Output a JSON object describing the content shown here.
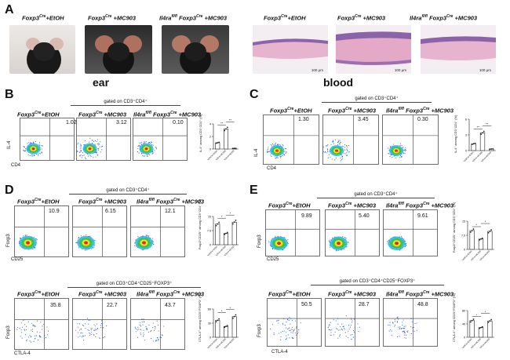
{
  "colors": {
    "flow_core_red": "#e8261e",
    "flow_yellow": "#f2e21c",
    "flow_green": "#3ec24a",
    "flow_cyan": "#24b8e4",
    "flow_blue": "#2450d8",
    "histo_pink": "#e7b4cf",
    "histo_purple": "#8b63a8"
  },
  "panel_a": {
    "letter": "A",
    "groups": [
      {
        "prefix": "Foxp3",
        "sup": "Cre",
        "suffix": "+EtOH"
      },
      {
        "prefix": "Foxp3",
        "sup": "Cre",
        "suffix": " +MC903"
      },
      {
        "prefix": "Il4ra",
        "sup": "fl/fl",
        "mid": " Foxp3",
        "sup2": "Cre",
        "suffix": " +MC903"
      }
    ],
    "ear_label": "ear",
    "blood_label": "blood",
    "scale_labels": [
      "100 μm",
      "100 μm",
      "100 μm"
    ]
  },
  "panel_b": {
    "letter": "B",
    "gate": "gated on CD3⁺CD4⁺",
    "groups": [
      {
        "prefix": "Foxp3",
        "sup": "Cre",
        "suffix": "+EtOH"
      },
      {
        "prefix": "Foxp3",
        "sup": "Cre",
        "suffix": " +MC903"
      },
      {
        "prefix": "Il4ra",
        "sup": "fl/fl",
        "mid": " Foxp3",
        "sup2": "Cre",
        "suffix": " +MC903"
      }
    ],
    "percentages": [
      "1.02",
      "3.12",
      "0.10"
    ],
    "ylabel": "IL-4",
    "xlabel": "CD4"
  },
  "panel_c": {
    "letter": "C",
    "gate": "gated on CD3⁺CD4⁺",
    "groups": [
      {
        "prefix": "Foxp3",
        "sup": "Cre",
        "suffix": "+EtOH"
      },
      {
        "prefix": "Foxp3",
        "sup": "Cre",
        "suffix": " +MC903"
      },
      {
        "prefix": "Il4ra",
        "sup": "fl/fl",
        "mid": " Foxp3",
        "sup2": "Cre",
        "suffix": " +MC903"
      }
    ],
    "percentages": [
      "1.30",
      "3.45",
      "0.30"
    ],
    "ylabel": "IL-4",
    "xlabel": "CD4"
  },
  "panel_d": {
    "letter": "D",
    "gate_top": "gated on CD3⁺CD4⁺",
    "gate_bottom": "gated on CD3⁺CD4⁺CD25⁺FOXP3⁺",
    "groups": [
      {
        "prefix": "Foxp3",
        "sup": "Cre",
        "suffix": "+EtOH"
      },
      {
        "prefix": "Foxp3",
        "sup": "Cre",
        "suffix": " +MC903"
      },
      {
        "prefix": "Il4ra",
        "sup": "fl/fl",
        "mid": " Foxp3",
        "sup2": "Cre",
        "suffix": " +MC903"
      }
    ],
    "percentages_top": [
      "10.9",
      "6.15",
      "12.1"
    ],
    "percentages_bottom": [
      "35.8",
      "22.7",
      "43.7"
    ],
    "ylabel_top": "Foxp3",
    "xlabel_top": "CD25",
    "ylabel_bottom": "Foxp3",
    "xlabel_bottom": "CTLA-4"
  },
  "panel_e": {
    "letter": "E",
    "gate_top": "gated on CD3⁺CD4⁺",
    "gate_bottom": "gated on CD3⁺CD4⁺CD25⁺FOXP3⁺",
    "groups": [
      {
        "prefix": "Foxp3",
        "sup": "Cre",
        "suffix": "+EtOH"
      },
      {
        "prefix": "Foxp3",
        "sup": "Cre",
        "suffix": " +MC903"
      },
      {
        "prefix": "Il4ra",
        "sup": "fl/fl",
        "mid": " Foxp3",
        "sup2": "Cre",
        "suffix": " +MC903"
      }
    ],
    "percentages_top": [
      "9.89",
      "5.40",
      "9.61"
    ],
    "percentages_bottom": [
      "50.5",
      "28.7",
      "48.8"
    ],
    "ylabel_top": "Foxp3",
    "xlabel_top": "CD25",
    "ylabel_bottom": "Foxp3",
    "xlabel_bottom": "CTLA-4"
  },
  "chart_data": [
    {
      "panel": "B",
      "type": "bar",
      "categories": [
        "Foxp3Cre+EtOH",
        "Foxp3Cre+MC903",
        "Il4rafl/fl Foxp3Cre+MC903"
      ],
      "values": [
        1.0,
        3.2,
        0.1
      ],
      "ylim": [
        0,
        4
      ],
      "ylabel": "IL-4⁺ among CD3⁺CD4⁺ (%)",
      "significance": [
        "**",
        "**"
      ]
    },
    {
      "panel": "C",
      "type": "bar",
      "categories": [
        "Foxp3Cre+EtOH",
        "Foxp3Cre+MC903",
        "Il4rafl/fl Foxp3Cre+MC903"
      ],
      "values": [
        1.3,
        3.4,
        0.3
      ],
      "ylim": [
        0,
        6
      ],
      "ylabel": "IL-4⁺ among CD3⁺CD4⁺ (%)",
      "significance": [
        "**",
        "**"
      ]
    },
    {
      "panel": "D-top",
      "type": "bar",
      "categories": [
        "Foxp3Cre+EtOH",
        "Foxp3Cre+MC903",
        "Il4rafl/fl Foxp3Cre+MC903"
      ],
      "values": [
        11,
        6,
        12
      ],
      "ylim": [
        0,
        15
      ],
      "ylabel": "Foxp3⁺CD25⁺ among CD3⁺CD4⁺ (%)",
      "significance": [
        "*",
        "*"
      ]
    },
    {
      "panel": "D-bottom",
      "type": "bar",
      "categories": [
        "Foxp3Cre+EtOH",
        "Foxp3Cre+MC903",
        "Il4rafl/fl Foxp3Cre+MC903"
      ],
      "values": [
        36,
        23,
        44
      ],
      "ylim": [
        0,
        60
      ],
      "ylabel": "CTLA-4⁺ among CD25⁺FOXP3⁺ (%)",
      "significance": [
        "*",
        "*"
      ]
    },
    {
      "panel": "E-top",
      "type": "bar",
      "categories": [
        "Foxp3Cre+EtOH",
        "Foxp3Cre+MC903",
        "Il4rafl/fl Foxp3Cre+MC903"
      ],
      "values": [
        10,
        5.5,
        9.6
      ],
      "ylim": [
        0,
        15
      ],
      "ylabel": "Foxp3⁺CD25⁺ among CD3⁺CD4⁺ (%)",
      "significance": [
        "*",
        "*"
      ]
    },
    {
      "panel": "E-bottom",
      "type": "bar",
      "categories": [
        "Foxp3Cre+EtOH",
        "Foxp3Cre+MC903",
        "Il4rafl/fl Foxp3Cre+MC903"
      ],
      "values": [
        50,
        29,
        49
      ],
      "ylim": [
        0,
        80
      ],
      "ylabel": "CTLA-4⁺ among CD25⁺FOXP3⁺ (%)",
      "significance": [
        "*",
        "*"
      ]
    }
  ]
}
